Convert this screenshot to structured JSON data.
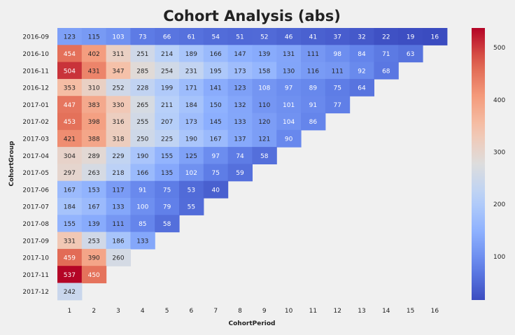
{
  "chart_data": {
    "type": "heatmap",
    "title": "Cohort Analysis (abs)",
    "xlabel": "CohortPeriod",
    "ylabel": "CohortGroup",
    "colormap": "coolwarm",
    "vmin": 16,
    "vmax": 537,
    "x_categories": [
      "1",
      "2",
      "3",
      "4",
      "5",
      "6",
      "7",
      "8",
      "9",
      "10",
      "11",
      "12",
      "13",
      "14",
      "15",
      "16"
    ],
    "y_categories": [
      "2016-09",
      "2016-10",
      "2016-11",
      "2016-12",
      "2017-01",
      "2017-02",
      "2017-03",
      "2017-04",
      "2017-05",
      "2017-06",
      "2017-07",
      "2017-08",
      "2017-09",
      "2017-10",
      "2017-11",
      "2017-12"
    ],
    "values": [
      [
        123,
        115,
        103,
        73,
        66,
        61,
        54,
        51,
        52,
        46,
        41,
        37,
        32,
        22,
        19,
        16
      ],
      [
        454,
        402,
        311,
        251,
        214,
        189,
        166,
        147,
        139,
        131,
        111,
        98,
        84,
        71,
        63
      ],
      [
        504,
        431,
        347,
        285,
        254,
        231,
        195,
        173,
        158,
        130,
        116,
        111,
        92,
        68
      ],
      [
        353,
        310,
        252,
        228,
        199,
        171,
        141,
        123,
        108,
        97,
        89,
        75,
        64
      ],
      [
        447,
        383,
        330,
        265,
        211,
        184,
        150,
        132,
        110,
        101,
        91,
        77
      ],
      [
        453,
        398,
        316,
        255,
        207,
        173,
        145,
        133,
        120,
        104,
        86
      ],
      [
        421,
        388,
        318,
        250,
        225,
        190,
        167,
        137,
        121,
        90
      ],
      [
        304,
        289,
        229,
        190,
        155,
        125,
        97,
        74,
        58
      ],
      [
        297,
        263,
        218,
        166,
        135,
        102,
        75,
        59
      ],
      [
        167,
        153,
        117,
        91,
        75,
        53,
        40
      ],
      [
        184,
        167,
        133,
        100,
        79,
        55
      ],
      [
        155,
        139,
        111,
        85,
        58
      ],
      [
        331,
        253,
        186,
        133
      ],
      [
        459,
        390,
        260
      ],
      [
        537,
        450
      ],
      [
        242
      ]
    ],
    "colorbar_ticks": [
      "100",
      "200",
      "300",
      "400",
      "500"
    ],
    "colorbar_tick_values": [
      100,
      200,
      300,
      400,
      500
    ],
    "grid": false
  }
}
